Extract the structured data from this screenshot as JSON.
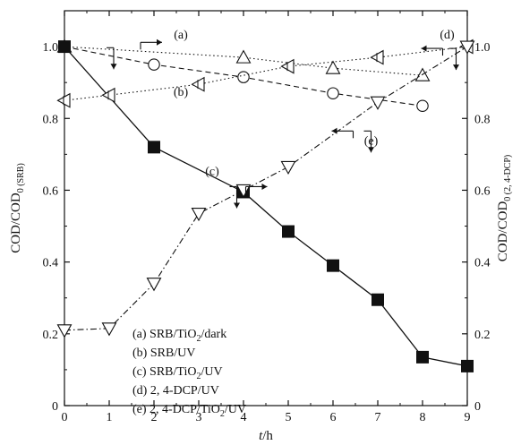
{
  "chart_data": {
    "type": "line",
    "x_axis": {
      "label_italic": "t",
      "label_unit": "/h",
      "range": [
        0,
        9
      ],
      "ticks": [
        0,
        1,
        2,
        3,
        4,
        5,
        6,
        7,
        8,
        9
      ]
    },
    "y_axis_left": {
      "label_main": "COD/COD",
      "label_sub": "0 (SRB)",
      "range": [
        0,
        1.1
      ],
      "ticks": [
        0,
        0.2,
        0.4,
        0.6,
        0.8,
        1.0
      ],
      "tick_labels": [
        "0",
        "0.2",
        "0.4",
        "0.6",
        "0.8",
        "1.0"
      ]
    },
    "y_axis_right": {
      "label_main": "COD/COD",
      "label_sub": "0 (2, 4-DCP)",
      "range": [
        0,
        1.1
      ],
      "ticks": [
        0,
        0.2,
        0.4,
        0.6,
        0.8,
        1.0
      ],
      "tick_labels": [
        "0",
        "0.2",
        "0.4",
        "0.6",
        "0.8",
        "1.0"
      ]
    },
    "series": [
      {
        "id": "a",
        "name": "(a) SRB/TiO2/dark",
        "axis": "left",
        "marker": "triangle-up-open",
        "line": "dotted",
        "x": [
          0,
          4,
          6,
          8
        ],
        "y": [
          1.0,
          0.97,
          0.94,
          0.92
        ]
      },
      {
        "id": "b",
        "name": "(b) SRB/UV",
        "axis": "left",
        "marker": "circle-open",
        "line": "dashed",
        "x": [
          0,
          2,
          4,
          6,
          8
        ],
        "y": [
          1.0,
          0.95,
          0.915,
          0.87,
          0.835
        ]
      },
      {
        "id": "c",
        "name": "(c) SRB/TiO2/UV",
        "axis": "left",
        "marker": "square-filled",
        "line": "solid",
        "x": [
          0,
          2,
          4,
          5,
          6,
          7,
          8,
          9
        ],
        "y": [
          1.0,
          0.72,
          0.595,
          0.485,
          0.39,
          0.295,
          0.135,
          0.11
        ]
      },
      {
        "id": "d",
        "name": "(d) 2, 4-DCP/UV",
        "axis": "right",
        "marker": "triangle-left-open",
        "line": "dotted",
        "x": [
          0,
          1,
          3,
          5,
          7,
          9
        ],
        "y": [
          0.85,
          0.865,
          0.895,
          0.945,
          0.97,
          1.0
        ]
      },
      {
        "id": "e",
        "name": "(e) 2, 4-DCP/TiO2/UV",
        "axis": "right",
        "marker": "triangle-down-open",
        "line": "dashdot",
        "x": [
          0,
          1,
          2,
          3,
          4,
          5,
          7,
          9
        ],
        "y": [
          0.21,
          0.215,
          0.34,
          0.535,
          0.6,
          0.665,
          0.845,
          1.0
        ]
      }
    ],
    "legend": {
      "placement": "bottom-center",
      "entries": [
        {
          "prefix": "(a) SRB/TiO",
          "sub": "2",
          "suffix": "/dark"
        },
        {
          "prefix": "(b) SRB/UV",
          "sub": "",
          "suffix": ""
        },
        {
          "prefix": "(c) SRB/TiO",
          "sub": "2",
          "suffix": "/UV"
        },
        {
          "prefix": "(d) 2, 4-DCP/UV",
          "sub": "",
          "suffix": ""
        },
        {
          "prefix": "(e) 2, 4-DCP/TiO",
          "sub": "2",
          "suffix": "/UV"
        }
      ]
    },
    "annotations": [
      {
        "text": "(a)",
        "x": 2.6,
        "y": 1.035
      },
      {
        "text": "(b)",
        "x": 2.6,
        "y": 0.875
      },
      {
        "text": "(c)",
        "x": 3.3,
        "y": 0.655
      },
      {
        "text": "(d)",
        "x": 8.55,
        "y": 1.035
      },
      {
        "text": "(e)",
        "x": 6.85,
        "y": 0.74
      }
    ],
    "axis_indicator_arrows": [
      {
        "for": "a",
        "x": 1.7,
        "y": 1.012,
        "dir": "right"
      },
      {
        "for": "b",
        "x": 1.1,
        "y": 0.997,
        "dir": "down"
      },
      {
        "for": "c",
        "x": 4.05,
        "y": 0.61,
        "dir": "right"
      },
      {
        "for": "c",
        "x": 3.85,
        "y": 0.61,
        "dir": "down"
      },
      {
        "for": "d",
        "x": 8.45,
        "y": 0.995,
        "dir": "left"
      },
      {
        "for": "d",
        "x": 8.75,
        "y": 0.995,
        "dir": "down"
      },
      {
        "for": "e",
        "x": 6.45,
        "y": 0.765,
        "dir": "left"
      },
      {
        "for": "e",
        "x": 6.85,
        "y": 0.765,
        "dir": "down"
      }
    ],
    "grid": false
  }
}
